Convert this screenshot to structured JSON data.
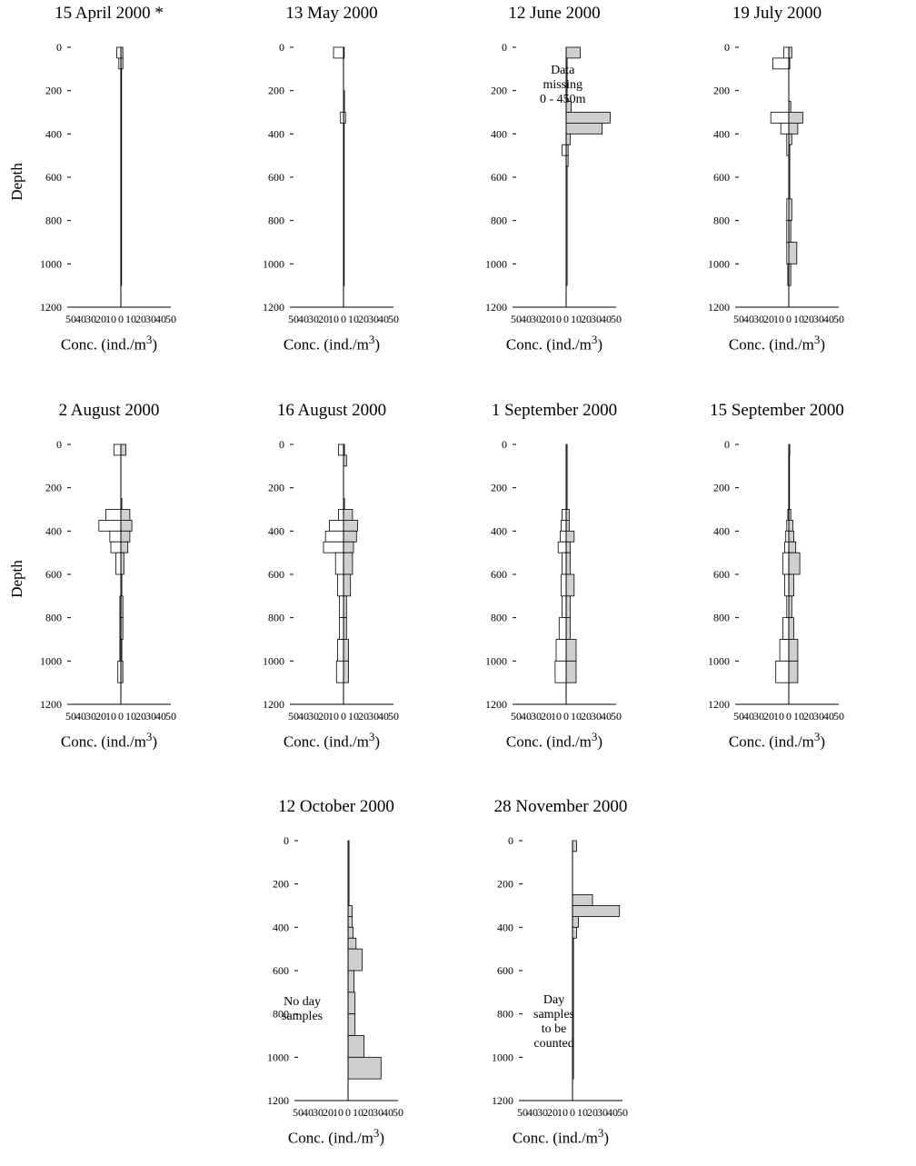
{
  "figure": {
    "ylabel": "Depth",
    "xlabel": "Conc. (ind./m",
    "xlabel_sup": "3",
    "xlabel_close": ")",
    "x_ticks": [
      "50",
      "40",
      "30",
      "20",
      "10",
      "0",
      "10",
      "20",
      "30",
      "40",
      "50"
    ],
    "y_ticks": [
      "0",
      "200",
      "400",
      "600",
      "800",
      "1000",
      "1200"
    ]
  },
  "chart_data": [
    {
      "type": "bar",
      "title": "15 April 2000 *",
      "ylabel": "Depth",
      "xlabel": "Conc. (ind./m3)",
      "ylim": [
        1200,
        0
      ],
      "xlim": [
        -50,
        50
      ],
      "annotation": [],
      "series": [
        {
          "name": "",
          "bins": [
            [
              0,
              50,
              -4
            ],
            [
              50,
              100,
              -2
            ]
          ]
        },
        {
          "name": "",
          "bins": [
            [
              0,
              50,
              2
            ],
            [
              50,
              100,
              2
            ],
            [
              100,
              1100,
              0.5
            ]
          ]
        }
      ]
    },
    {
      "type": "bar",
      "title": "13 May 2000",
      "ylabel": "",
      "xlabel": "Conc. (ind./m3)",
      "ylim": [
        1200,
        0
      ],
      "xlim": [
        -50,
        50
      ],
      "annotation": [],
      "series": [
        {
          "name": "",
          "bins": [
            [
              0,
              50,
              -10
            ],
            [
              300,
              350,
              -3
            ]
          ]
        },
        {
          "name": "",
          "bins": [
            [
              0,
              50,
              0.5
            ],
            [
              200,
              300,
              1
            ],
            [
              300,
              350,
              2
            ],
            [
              350,
              1100,
              0.5
            ]
          ]
        }
      ]
    },
    {
      "type": "bar",
      "title": "12 June 2000",
      "ylabel": "",
      "xlabel": "Conc. (ind./m3)",
      "ylim": [
        1200,
        0
      ],
      "xlim": [
        -50,
        50
      ],
      "annotation": [
        "Data",
        "missing",
        "0 - 450m"
      ],
      "series": [
        {
          "name": "",
          "bins": [
            [
              450,
              500,
              -4
            ]
          ]
        },
        {
          "name": "",
          "bins": [
            [
              0,
              50,
              14
            ],
            [
              50,
              250,
              1
            ],
            [
              250,
              300,
              5
            ],
            [
              300,
              350,
              44
            ],
            [
              350,
              400,
              36
            ],
            [
              400,
              450,
              4
            ],
            [
              450,
              500,
              2
            ],
            [
              500,
              550,
              2
            ],
            [
              550,
              1100,
              1
            ]
          ]
        }
      ]
    },
    {
      "type": "bar",
      "title": "19 July 2000",
      "ylabel": "",
      "xlabel": "Conc. (ind./m3)",
      "ylim": [
        1200,
        0
      ],
      "xlim": [
        -50,
        50
      ],
      "annotation": [],
      "series": [
        {
          "name": "",
          "bins": [
            [
              0,
              50,
              -5
            ],
            [
              50,
              100,
              -16
            ],
            [
              300,
              350,
              -18
            ],
            [
              350,
              400,
              -8
            ],
            [
              400,
              500,
              -2
            ],
            [
              700,
              800,
              -2
            ],
            [
              800,
              900,
              -2
            ],
            [
              900,
              1000,
              -2
            ],
            [
              1000,
              1100,
              -1
            ]
          ]
        },
        {
          "name": "",
          "bins": [
            [
              0,
              50,
              3
            ],
            [
              50,
              100,
              1
            ],
            [
              250,
              300,
              2
            ],
            [
              300,
              350,
              14
            ],
            [
              350,
              400,
              9
            ],
            [
              400,
              450,
              3
            ],
            [
              450,
              700,
              1
            ],
            [
              700,
              800,
              3
            ],
            [
              800,
              900,
              2
            ],
            [
              900,
              1000,
              8
            ],
            [
              1000,
              1100,
              2
            ]
          ]
        }
      ]
    },
    {
      "type": "bar",
      "title": "2 August 2000",
      "ylabel": "Depth",
      "xlabel": "Conc. (ind./m3)",
      "ylim": [
        1200,
        0
      ],
      "xlim": [
        -50,
        50
      ],
      "annotation": [],
      "series": [
        {
          "name": "",
          "bins": [
            [
              0,
              50,
              -7
            ],
            [
              300,
              350,
              -15
            ],
            [
              350,
              400,
              -22
            ],
            [
              400,
              450,
              -11
            ],
            [
              450,
              500,
              -10
            ],
            [
              500,
              600,
              -5
            ],
            [
              700,
              800,
              -1
            ],
            [
              800,
              900,
              -1
            ],
            [
              900,
              1000,
              -1
            ],
            [
              1000,
              1100,
              -3
            ]
          ]
        },
        {
          "name": "",
          "bins": [
            [
              0,
              50,
              5
            ],
            [
              250,
              300,
              1
            ],
            [
              300,
              350,
              9
            ],
            [
              350,
              400,
              11
            ],
            [
              400,
              450,
              9
            ],
            [
              450,
              500,
              7
            ],
            [
              500,
              600,
              3
            ],
            [
              600,
              700,
              1
            ],
            [
              700,
              800,
              2
            ],
            [
              800,
              900,
              2
            ],
            [
              900,
              1000,
              1
            ],
            [
              1000,
              1100,
              2
            ]
          ]
        }
      ]
    },
    {
      "type": "bar",
      "title": "16 August 2000",
      "ylabel": "",
      "xlabel": "Conc. (ind./m3)",
      "ylim": [
        1200,
        0
      ],
      "xlim": [
        -50,
        50
      ],
      "annotation": [],
      "series": [
        {
          "name": "",
          "bins": [
            [
              0,
              50,
              -5
            ],
            [
              300,
              350,
              -5
            ],
            [
              350,
              400,
              -14
            ],
            [
              400,
              450,
              -18
            ],
            [
              450,
              500,
              -20
            ],
            [
              500,
              600,
              -8
            ],
            [
              600,
              700,
              -6
            ],
            [
              700,
              800,
              -4
            ],
            [
              800,
              900,
              -4
            ],
            [
              900,
              1000,
              -6
            ],
            [
              1000,
              1100,
              -7
            ]
          ]
        },
        {
          "name": "",
          "bins": [
            [
              0,
              50,
              1
            ],
            [
              50,
              100,
              3
            ],
            [
              250,
              300,
              1
            ],
            [
              300,
              350,
              9
            ],
            [
              350,
              400,
              14
            ],
            [
              400,
              450,
              13
            ],
            [
              450,
              500,
              10
            ],
            [
              500,
              600,
              9
            ],
            [
              600,
              700,
              7
            ],
            [
              700,
              800,
              3
            ],
            [
              800,
              900,
              3
            ],
            [
              900,
              1000,
              5
            ],
            [
              1000,
              1100,
              5
            ]
          ]
        }
      ]
    },
    {
      "type": "bar",
      "title": "1 September 2000",
      "ylabel": "",
      "xlabel": "Conc. (ind./m3)",
      "ylim": [
        1200,
        0
      ],
      "xlim": [
        -50,
        50
      ],
      "annotation": [],
      "series": [
        {
          "name": "",
          "bins": [
            [
              300,
              350,
              -4
            ],
            [
              350,
              400,
              -5
            ],
            [
              400,
              450,
              -6
            ],
            [
              450,
              500,
              -8
            ],
            [
              500,
              600,
              -4
            ],
            [
              600,
              700,
              -5
            ],
            [
              700,
              800,
              -4
            ],
            [
              800,
              900,
              -7
            ],
            [
              900,
              1000,
              -10
            ],
            [
              1000,
              1100,
              -11
            ]
          ]
        },
        {
          "name": "",
          "bins": [
            [
              0,
              300,
              1
            ],
            [
              300,
              350,
              3
            ],
            [
              350,
              400,
              3
            ],
            [
              400,
              450,
              8
            ],
            [
              450,
              500,
              4
            ],
            [
              500,
              600,
              4
            ],
            [
              600,
              700,
              8
            ],
            [
              700,
              800,
              4
            ],
            [
              800,
              900,
              4
            ],
            [
              900,
              1000,
              10
            ],
            [
              1000,
              1100,
              10
            ]
          ]
        }
      ]
    },
    {
      "type": "bar",
      "title": "15 September 2000",
      "ylabel": "",
      "xlabel": "Conc. (ind./m3)",
      "ylim": [
        1200,
        0
      ],
      "xlim": [
        -50,
        50
      ],
      "annotation": [],
      "series": [
        {
          "name": "",
          "bins": [
            [
              300,
              350,
              -1
            ],
            [
              350,
              400,
              -2
            ],
            [
              400,
              450,
              -3
            ],
            [
              450,
              500,
              -4
            ],
            [
              500,
              600,
              -6
            ],
            [
              600,
              700,
              -4
            ],
            [
              700,
              800,
              -2
            ],
            [
              800,
              900,
              -6
            ],
            [
              900,
              1000,
              -9
            ],
            [
              1000,
              1100,
              -13
            ]
          ]
        },
        {
          "name": "",
          "bins": [
            [
              0,
              50,
              1
            ],
            [
              50,
              300,
              0.5
            ],
            [
              300,
              350,
              2
            ],
            [
              350,
              400,
              4
            ],
            [
              400,
              450,
              5
            ],
            [
              450,
              500,
              7
            ],
            [
              500,
              600,
              11
            ],
            [
              600,
              700,
              5
            ],
            [
              700,
              800,
              3
            ],
            [
              800,
              900,
              5
            ],
            [
              900,
              1000,
              9
            ],
            [
              1000,
              1100,
              9
            ]
          ]
        }
      ]
    },
    {
      "type": "bar",
      "title": "12 October 2000",
      "ylabel": "",
      "xlabel": "Conc. (ind./m3)",
      "ylim": [
        1200,
        0
      ],
      "xlim": [
        -50,
        50
      ],
      "annotation": [
        "No day",
        "samples"
      ],
      "series": [
        {
          "name": "",
          "bins": [
            [
              0,
              300,
              1
            ],
            [
              300,
              350,
              4
            ],
            [
              350,
              400,
              4
            ],
            [
              400,
              450,
              5
            ],
            [
              450,
              500,
              8
            ],
            [
              500,
              600,
              14
            ],
            [
              600,
              700,
              6
            ],
            [
              700,
              800,
              7
            ],
            [
              800,
              900,
              7
            ],
            [
              900,
              1000,
              16
            ],
            [
              1000,
              1100,
              33
            ]
          ]
        }
      ]
    },
    {
      "type": "bar",
      "title": "28 November 2000",
      "ylabel": "",
      "xlabel": "Conc. (ind./m3)",
      "ylim": [
        1200,
        0
      ],
      "xlim": [
        -50,
        50
      ],
      "annotation": [
        "Day",
        "samples",
        "to be",
        "counted"
      ],
      "series": [
        {
          "name": "",
          "bins": [
            [
              0,
              50,
              4
            ],
            [
              250,
              300,
              20
            ],
            [
              300,
              350,
              47
            ],
            [
              350,
              400,
              6
            ],
            [
              400,
              450,
              4
            ],
            [
              450,
              1100,
              1
            ]
          ]
        }
      ]
    }
  ]
}
